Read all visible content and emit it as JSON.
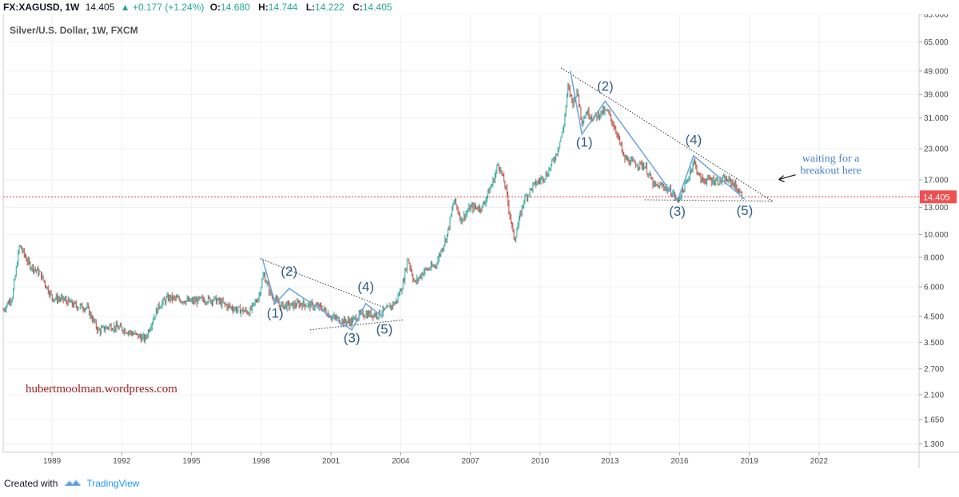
{
  "header": {
    "symbol": "FX:XAGUSD",
    "interval": ", 1W",
    "last": "14.405",
    "arrow": "▲",
    "change": "+0.177 (+1.24%)",
    "o_label": "O:",
    "o_val": "14.680",
    "h_label": "H:",
    "h_val": "14.744",
    "l_label": "L:",
    "l_val": "14.222",
    "c_label": "C:",
    "c_val": "14.405"
  },
  "footer": {
    "created_with": "Created with",
    "brand": "TradingView"
  },
  "chart_data": {
    "type": "line",
    "title": "Silver/U.S. Dollar, 1W, FXCM",
    "watermark": "hubertmoolman.wordpress.com",
    "y_scale": "log",
    "ylim": [
      1.2,
      85
    ],
    "xlim": [
      1986.9,
      2026.3
    ],
    "y_ticks": [
      "85.000",
      "65.000",
      "49.000",
      "39.000",
      "31.000",
      "23.000",
      "17.000",
      "13.000",
      "10.000",
      "8.000",
      "6.000",
      "4.500",
      "3.500",
      "2.700",
      "2.100",
      "1.650",
      "1.300"
    ],
    "y_tick_values": [
      85,
      65,
      49,
      39,
      31,
      23,
      17,
      13,
      10,
      8,
      6,
      4.5,
      3.5,
      2.7,
      2.1,
      1.65,
      1.3
    ],
    "x_ticks": [
      "1989",
      "1992",
      "1995",
      "1998",
      "2001",
      "2004",
      "2007",
      "2010",
      "2013",
      "2016",
      "2019",
      "2022"
    ],
    "x_tick_values": [
      1989,
      1992,
      1995,
      1998,
      2001,
      2004,
      2007,
      2010,
      2013,
      2016,
      2019,
      2022
    ],
    "current_price": 14.405,
    "current_price_label": "14.405",
    "price_series": {
      "x": [
        1986.9,
        1987.3,
        1987.6,
        1988.0,
        1988.5,
        1989.0,
        1989.5,
        1990.0,
        1990.5,
        1991.0,
        1991.5,
        1992.0,
        1992.5,
        1993.0,
        1993.3,
        1993.6,
        1994.0,
        1994.5,
        1995.0,
        1995.5,
        1996.0,
        1996.5,
        1997.0,
        1997.5,
        1997.9,
        1998.1,
        1998.4,
        1998.8,
        1999.3,
        1999.7,
        2000.2,
        2000.6,
        2001.0,
        2001.5,
        2001.9,
        2002.3,
        2002.6,
        2003.0,
        2003.4,
        2003.8,
        2004.1,
        2004.3,
        2004.6,
        2005.0,
        2005.5,
        2006.0,
        2006.3,
        2006.6,
        2007.0,
        2007.5,
        2008.0,
        2008.2,
        2008.5,
        2008.8,
        2008.9,
        2009.3,
        2009.7,
        2010.0,
        2010.3,
        2010.7,
        2011.0,
        2011.2,
        2011.4,
        2011.6,
        2011.8,
        2012.0,
        2012.3,
        2012.7,
        2012.9,
        2013.3,
        2013.6,
        2014.0,
        2014.5,
        2014.9,
        2015.3,
        2015.7,
        2015.9,
        2016.3,
        2016.6,
        2016.9,
        2017.3,
        2017.7,
        2018.0,
        2018.3,
        2018.7
      ],
      "y": [
        4.8,
        5.5,
        9.0,
        7.5,
        6.8,
        5.4,
        5.3,
        5.0,
        4.9,
        3.9,
        4.1,
        4.0,
        3.8,
        3.6,
        4.3,
        5.0,
        5.4,
        5.3,
        5.2,
        5.3,
        5.3,
        5.0,
        4.8,
        4.7,
        5.5,
        6.8,
        5.6,
        5.0,
        5.0,
        5.1,
        5.0,
        4.9,
        4.5,
        4.3,
        4.3,
        4.6,
        4.6,
        4.6,
        4.8,
        5.2,
        6.2,
        8.0,
        6.2,
        7.0,
        7.4,
        10.0,
        14.0,
        11.5,
        13.0,
        13.0,
        17.0,
        20.0,
        16.0,
        10.5,
        9.5,
        14.0,
        16.0,
        17.0,
        18.0,
        22.0,
        28.0,
        42.0,
        36.0,
        40.0,
        30.0,
        33.0,
        31.0,
        33.0,
        33.0,
        27.0,
        21.0,
        20.0,
        19.5,
        16.0,
        16.0,
        15.0,
        13.8,
        16.5,
        20.5,
        17.0,
        17.0,
        16.8,
        17.0,
        16.5,
        14.4
      ]
    },
    "trend_lines": [
      {
        "style": "dotted",
        "from": [
          1997.95,
          7.9
        ],
        "to": [
          2003.3,
          4.9
        ]
      },
      {
        "style": "dotted",
        "from": [
          2000.1,
          3.95
        ],
        "to": [
          2004.1,
          4.35
        ]
      },
      {
        "style": "dotted",
        "from": [
          2010.9,
          50.5
        ],
        "to": [
          2020.0,
          13.8
        ]
      },
      {
        "style": "dotted",
        "from": [
          2014.5,
          14.0
        ],
        "to": [
          2020.0,
          13.8
        ]
      }
    ],
    "wave_lines": [
      {
        "points": [
          [
            1998.05,
            7.9
          ],
          [
            1998.6,
            5.1
          ],
          [
            1999.2,
            5.9
          ],
          [
            2001.0,
            4.5
          ],
          [
            2001.9,
            3.95
          ],
          [
            2002.5,
            5.1
          ],
          [
            2003.2,
            4.5
          ]
        ]
      },
      {
        "points": [
          [
            2011.3,
            49.0
          ],
          [
            2011.8,
            26.5
          ],
          [
            2012.8,
            36.5
          ],
          [
            2014.9,
            19.0
          ],
          [
            2015.9,
            13.8
          ],
          [
            2016.6,
            21.5
          ],
          [
            2018.8,
            14.1
          ]
        ]
      }
    ],
    "wave_labels": [
      {
        "text": "(1)",
        "x": 1998.6,
        "y": 4.45
      },
      {
        "text": "(2)",
        "x": 1999.2,
        "y": 6.7
      },
      {
        "text": "(3)",
        "x": 2001.9,
        "y": 3.5
      },
      {
        "text": "(4)",
        "x": 2002.5,
        "y": 5.75
      },
      {
        "text": "(5)",
        "x": 2003.3,
        "y": 3.8
      },
      {
        "text": "(1)",
        "x": 2011.9,
        "y": 23.5
      },
      {
        "text": "(2)",
        "x": 2012.8,
        "y": 40.5
      },
      {
        "text": "(3)",
        "x": 2015.9,
        "y": 12.0
      },
      {
        "text": "(4)",
        "x": 2016.6,
        "y": 24.0
      },
      {
        "text": "(5)",
        "x": 2018.8,
        "y": 12.1
      }
    ],
    "annotation": {
      "lines": [
        "waiting for a",
        "breakout here"
      ],
      "x": 2021.3,
      "y": 19.0
    }
  }
}
